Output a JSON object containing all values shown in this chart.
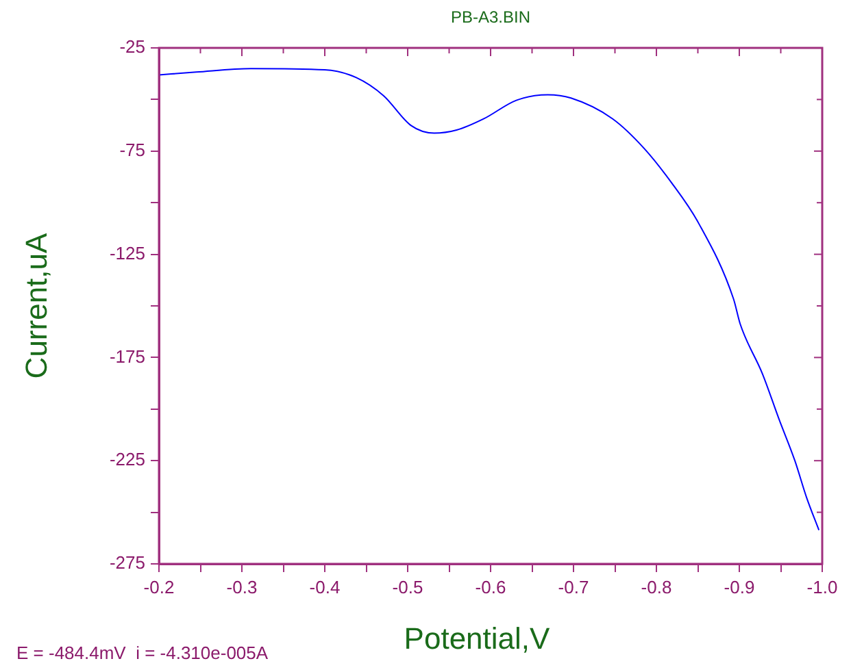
{
  "chart_data": {
    "type": "line",
    "title": "PB-A3.BIN",
    "xlabel": "Potential,V",
    "ylabel": "Current,uA",
    "annotations": [
      "E = -484.4mV  i = -4.310e-005A"
    ],
    "x": [
      -0.2,
      -0.245,
      -0.311,
      -0.4,
      -0.438,
      -0.471,
      -0.504,
      -0.532,
      -0.559,
      -0.592,
      -0.631,
      -0.669,
      -0.697,
      -0.747,
      -0.785,
      -0.818,
      -0.851,
      -0.893,
      -0.901,
      -0.928,
      -0.948,
      -0.967,
      -0.981,
      -0.996
    ],
    "series": [
      {
        "color": "#0000ff",
        "values": [
          -38.1,
          -36.7,
          -35,
          -35.6,
          -39.4,
          -48.2,
          -62.6,
          -66.3,
          -64.8,
          -59.3,
          -50.4,
          -47.7,
          -49.3,
          -59.3,
          -73.6,
          -90.2,
          -110,
          -146.6,
          -158.7,
          -183,
          -205,
          -225,
          -242.7,
          -258.6
        ]
      }
    ],
    "xlim": [
      -0.2,
      -1.0
    ],
    "ylim": [
      -275,
      -25
    ],
    "xticks": [
      -0.2,
      {
        "value": -0.25,
        "label": null
      },
      -0.3,
      {
        "value": -0.35,
        "label": null
      },
      -0.4,
      {
        "value": -0.45,
        "label": null
      },
      -0.5,
      {
        "value": -0.55,
        "label": null
      },
      -0.6,
      {
        "value": -0.65,
        "label": null
      },
      -0.7,
      {
        "value": -0.75,
        "label": null
      },
      -0.8,
      {
        "value": -0.85,
        "label": null
      },
      -0.9,
      {
        "value": -0.95,
        "label": null
      },
      {
        "value": -1,
        "label": "-1.0"
      }
    ],
    "yticks": [
      -275,
      {
        "value": -250,
        "label": null
      },
      -225,
      {
        "value": -200,
        "label": null
      },
      -175,
      {
        "value": -150,
        "label": null
      },
      -125,
      {
        "value": -100,
        "label": null
      },
      -75,
      {
        "value": -50,
        "label": null
      },
      -25
    ],
    "grid": false,
    "legend": false,
    "marker": "none",
    "line_style": "solid"
  }
}
